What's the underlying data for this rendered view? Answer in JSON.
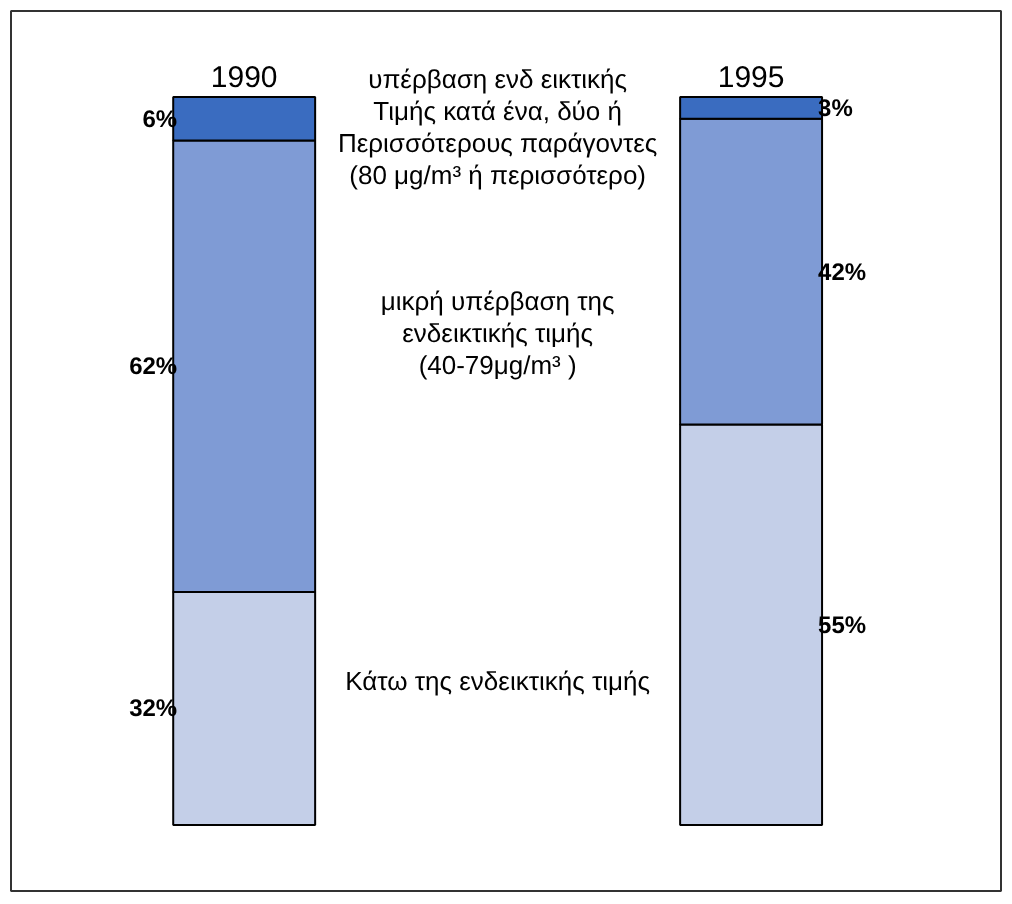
{
  "chart_data": {
    "type": "bar",
    "stacked": true,
    "categories": [
      "1990",
      "1995"
    ],
    "series": [
      {
        "name": "Κάτω της ενδεικτικής τιμής",
        "color": "#c4cfe8",
        "values": [
          32,
          55
        ],
        "value_labels": [
          "32%",
          "55%"
        ]
      },
      {
        "name": "μικρή υπέρβαση της\nενδεικτικής τιμής\n(40-79μg/m³ )",
        "color": "#7f9bd5",
        "values": [
          62,
          42
        ],
        "value_labels": [
          "62%",
          "42%"
        ]
      },
      {
        "name": "υπέρβαση ενδ εικτικής\nΤιμής κατά ένα, δύο ή\nΠερισσότερους παράγοντες\n(80 μg/m³ ή περισσότερο)",
        "color": "#3a6cc0",
        "values": [
          6,
          3
        ],
        "value_labels": [
          "6%",
          "3%"
        ]
      }
    ],
    "grid": false,
    "tick_labels": "x"
  }
}
